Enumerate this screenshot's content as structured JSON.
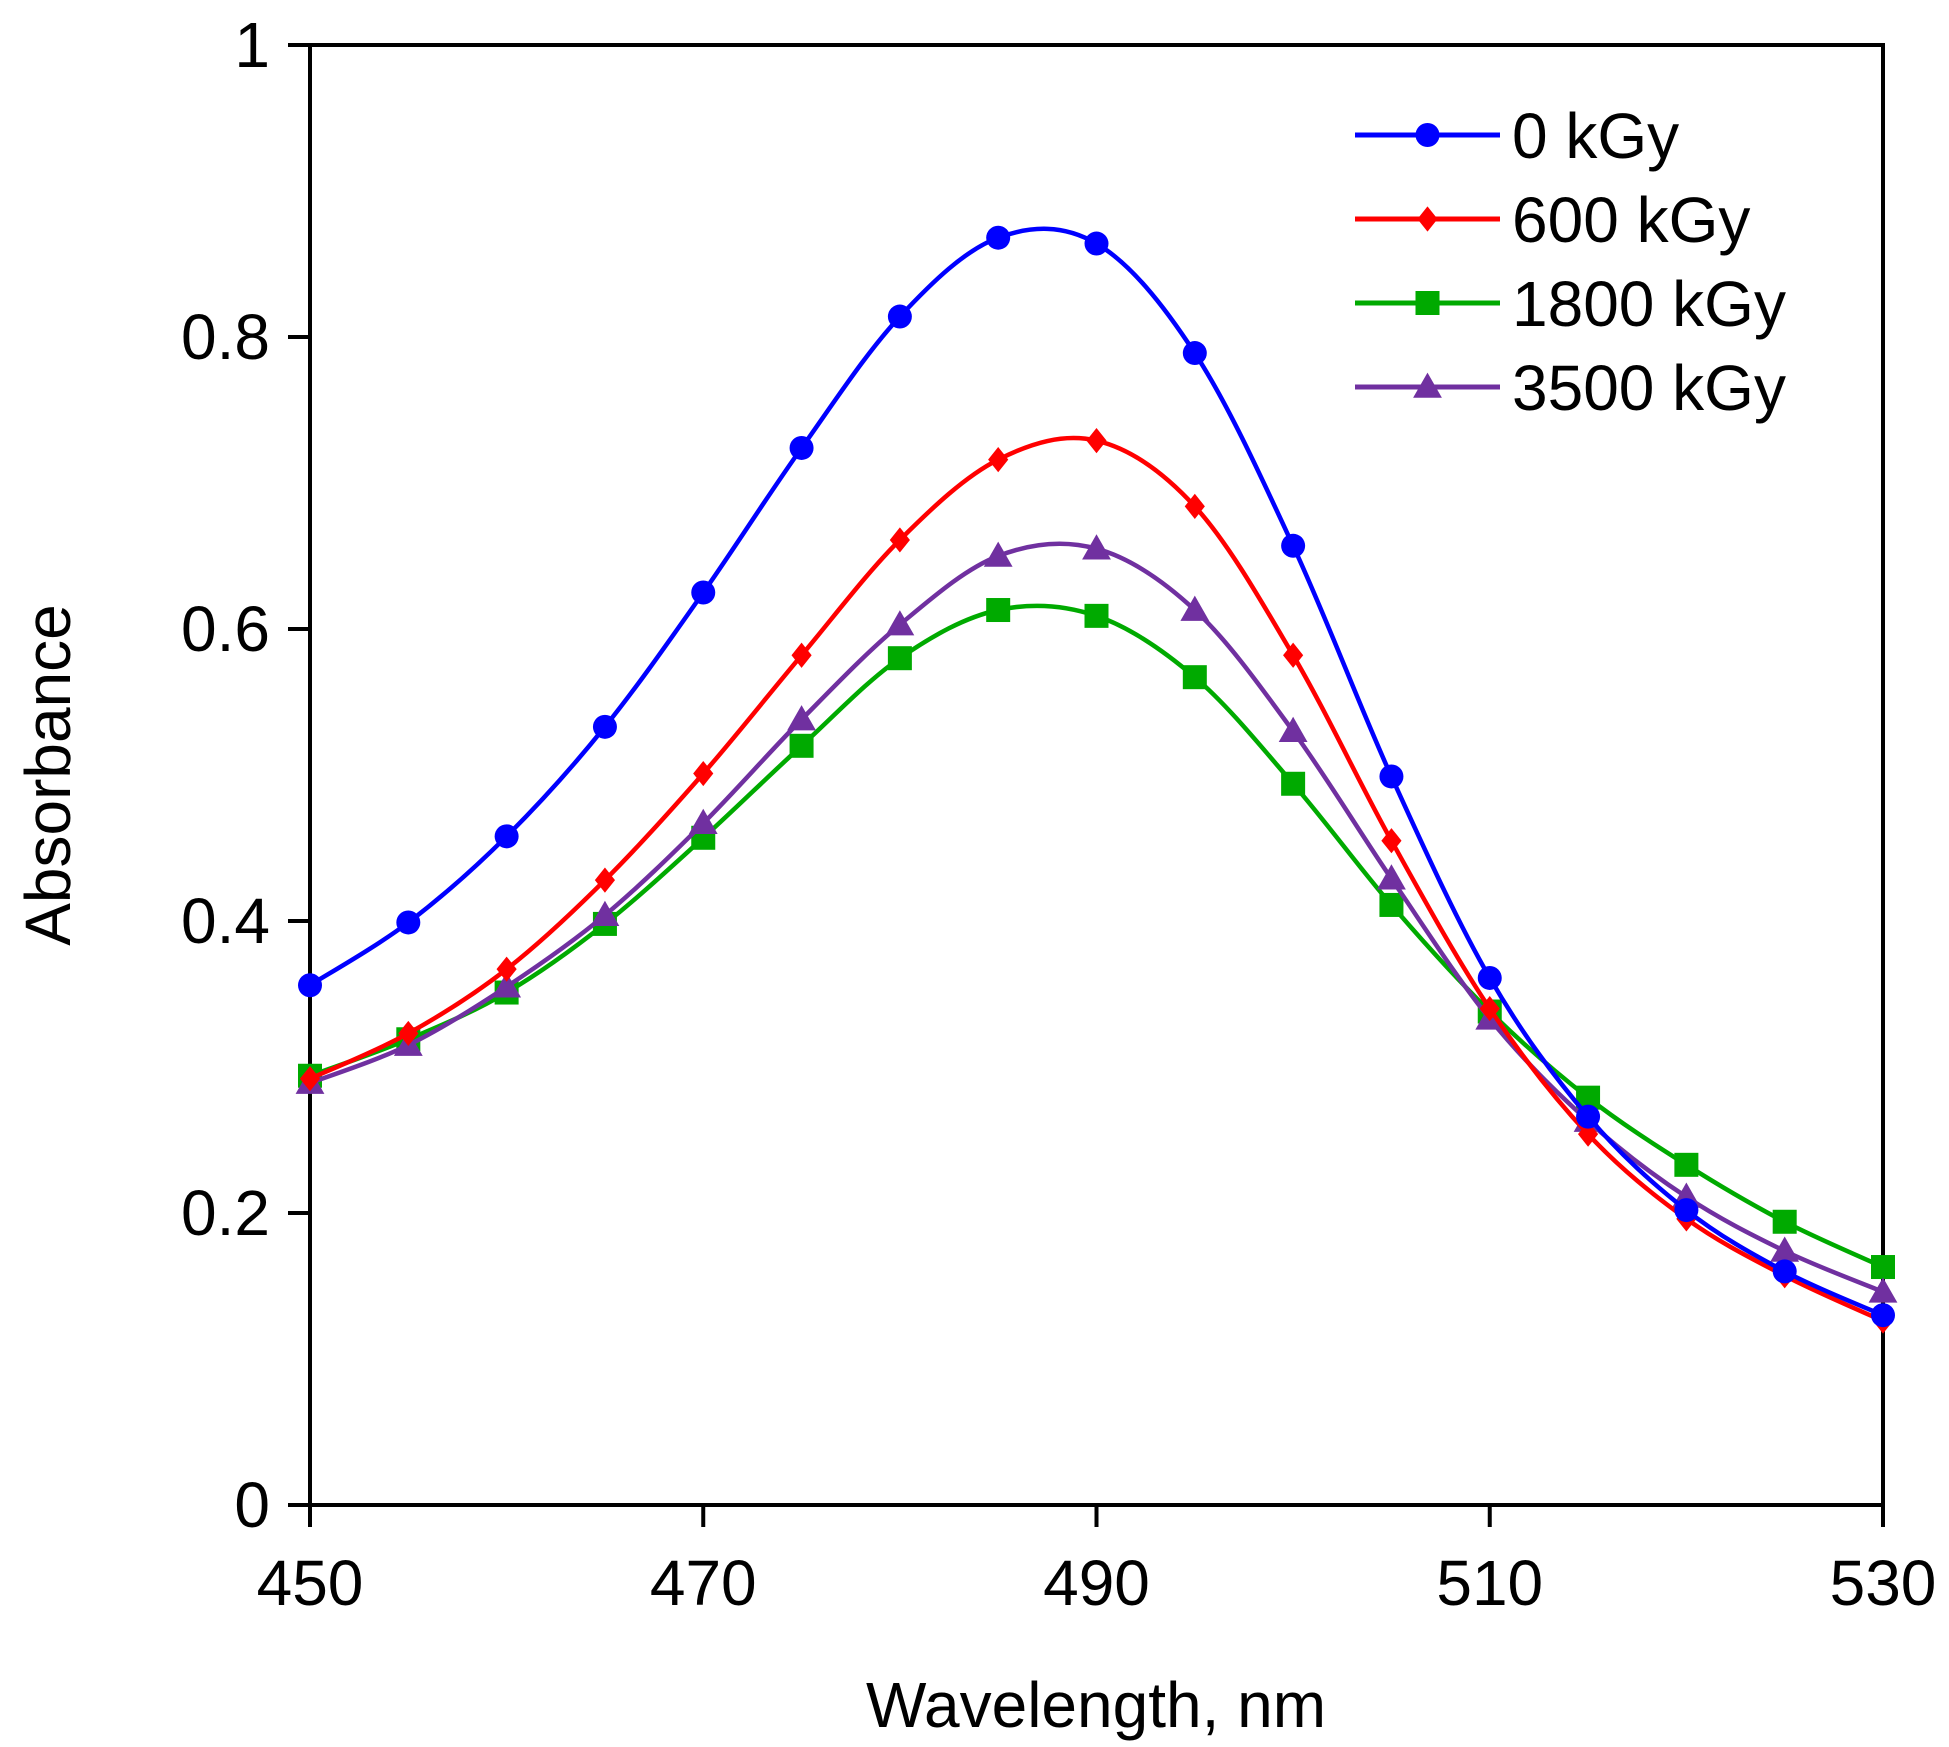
{
  "chart_data": {
    "type": "line",
    "title": "",
    "xlabel": "Wavelength, nm",
    "ylabel": "Absorbance",
    "xlim": [
      450,
      530
    ],
    "ylim": [
      0,
      1
    ],
    "xticks": [
      450,
      470,
      490,
      510,
      530
    ],
    "xtick_labels": [
      "450",
      "470",
      "490",
      "510",
      "530"
    ],
    "yticks": [
      0,
      0.2,
      0.4,
      0.6,
      0.8,
      1
    ],
    "ytick_labels": [
      "0",
      "0.2",
      "0.4",
      "0.6",
      "0.8",
      "1"
    ],
    "grid": false,
    "legend_position": "top-right",
    "x": [
      450,
      455,
      460,
      465,
      470,
      475,
      480,
      485,
      490,
      495,
      500,
      505,
      510,
      515,
      520,
      525,
      530
    ],
    "series": [
      {
        "name": "0 kGy",
        "color": "#0000ff",
        "marker": "circle",
        "values": [
          0.356,
          0.399,
          0.458,
          0.533,
          0.625,
          0.724,
          0.814,
          0.868,
          0.864,
          0.789,
          0.657,
          0.499,
          0.361,
          0.266,
          0.202,
          0.16,
          0.13
        ]
      },
      {
        "name": "600 kGy",
        "color": "#ff0000",
        "marker": "diamond",
        "values": [
          0.292,
          0.323,
          0.367,
          0.428,
          0.501,
          0.582,
          0.661,
          0.716,
          0.729,
          0.684,
          0.582,
          0.455,
          0.34,
          0.254,
          0.196,
          0.157,
          0.126
        ]
      },
      {
        "name": "1800 kGy",
        "color": "#00aa00",
        "marker": "square",
        "values": [
          0.294,
          0.319,
          0.351,
          0.398,
          0.457,
          0.52,
          0.58,
          0.613,
          0.609,
          0.567,
          0.494,
          0.411,
          0.338,
          0.279,
          0.233,
          0.194,
          0.163
        ]
      },
      {
        "name": "3500 kGy",
        "color": "#7030a0",
        "marker": "triangle",
        "values": [
          0.289,
          0.315,
          0.355,
          0.404,
          0.467,
          0.538,
          0.603,
          0.65,
          0.655,
          0.613,
          0.53,
          0.429,
          0.333,
          0.263,
          0.211,
          0.174,
          0.146
        ]
      }
    ]
  }
}
